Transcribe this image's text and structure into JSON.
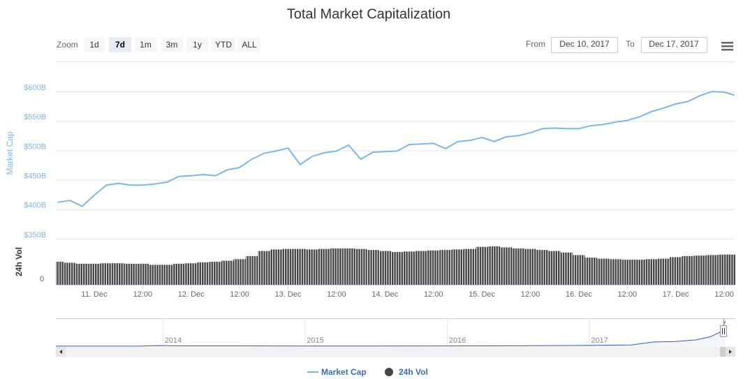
{
  "range_selector": {
    "label": "Zoom",
    "buttons": [
      "1d",
      "7d",
      "1m",
      "3m",
      "1y",
      "YTD",
      "ALL"
    ],
    "selected": "7d"
  },
  "date_range": {
    "from_label": "From",
    "from": "Dec 10, 2017",
    "to_label": "To",
    "to": "Dec 17, 2017"
  },
  "chart_data": [
    {
      "type": "line",
      "title": "Total Market Capitalization",
      "y_label": "Market Cap",
      "y2_label": "24h Vol",
      "x": [
        "2017-12-10T15:00",
        "2017-12-10T18:00",
        "2017-12-10T21:00",
        "2017-12-11T00:00",
        "2017-12-11T03:00",
        "2017-12-11T06:00",
        "2017-12-11T09:00",
        "2017-12-11T12:00",
        "2017-12-11T15:00",
        "2017-12-11T18:00",
        "2017-12-11T21:00",
        "2017-12-12T00:00",
        "2017-12-12T03:00",
        "2017-12-12T06:00",
        "2017-12-12T09:00",
        "2017-12-12T12:00",
        "2017-12-12T15:00",
        "2017-12-12T18:00",
        "2017-12-12T21:00",
        "2017-12-13T00:00",
        "2017-12-13T03:00",
        "2017-12-13T06:00",
        "2017-12-13T09:00",
        "2017-12-13T12:00",
        "2017-12-13T15:00",
        "2017-12-13T18:00",
        "2017-12-13T21:00",
        "2017-12-14T00:00",
        "2017-12-14T03:00",
        "2017-12-14T06:00",
        "2017-12-14T09:00",
        "2017-12-14T12:00",
        "2017-12-14T15:00",
        "2017-12-14T18:00",
        "2017-12-14T21:00",
        "2017-12-15T00:00",
        "2017-12-15T03:00",
        "2017-12-15T06:00",
        "2017-12-15T09:00",
        "2017-12-15T12:00",
        "2017-12-15T15:00",
        "2017-12-15T18:00",
        "2017-12-15T21:00",
        "2017-12-16T00:00",
        "2017-12-16T03:00",
        "2017-12-16T06:00",
        "2017-12-16T09:00",
        "2017-12-16T12:00",
        "2017-12-16T15:00",
        "2017-12-16T18:00",
        "2017-12-16T21:00",
        "2017-12-17T00:00",
        "2017-12-17T03:00",
        "2017-12-17T06:00",
        "2017-12-17T09:00",
        "2017-12-17T12:00",
        "2017-12-17T14:30"
      ],
      "series": [
        {
          "name": "Market Cap",
          "color": "#7cb5ec",
          "values": [
            412,
            415,
            405,
            424,
            441,
            444,
            441,
            441,
            443,
            446,
            456,
            457,
            459,
            457,
            467,
            471,
            485,
            495,
            499,
            504,
            476,
            490,
            496,
            499,
            509,
            485,
            497,
            498,
            499,
            510,
            511,
            512,
            503,
            515,
            517,
            522,
            515,
            523,
            525,
            530,
            537,
            538,
            537,
            537,
            542,
            544,
            548,
            551,
            557,
            566,
            572,
            579,
            583,
            593,
            600,
            599,
            594
          ]
        },
        {
          "name": "24h Vol",
          "type": "bar",
          "axis": "y2",
          "color": "#434348",
          "values": [
            22.5,
            21.5,
            20.5,
            20.5,
            21,
            21,
            20.5,
            20.5,
            19.5,
            19.5,
            20.5,
            21,
            22,
            22.5,
            23.5,
            25,
            28,
            33,
            34.5,
            35,
            35,
            34.5,
            35,
            35.5,
            35.5,
            35,
            34,
            33,
            32,
            32.5,
            33,
            33.5,
            34,
            34.5,
            35,
            37,
            37.5,
            36.5,
            35.5,
            35,
            34,
            33,
            31.5,
            29,
            26.5,
            25.5,
            25,
            24.5,
            24.5,
            25,
            25.5,
            27,
            28,
            28.5,
            29,
            29.5,
            29.5
          ]
        }
      ],
      "xlim": [
        "2017-12-10T14:30",
        "2017-12-17T14:45"
      ],
      "xticks": [
        {
          "value": "2017-12-11T00:00",
          "label": "11. Dec"
        },
        {
          "value": "2017-12-11T12:00",
          "label": "12:00"
        },
        {
          "value": "2017-12-12T00:00",
          "label": "12. Dec"
        },
        {
          "value": "2017-12-12T12:00",
          "label": "12:00"
        },
        {
          "value": "2017-12-13T00:00",
          "label": "13. Dec"
        },
        {
          "value": "2017-12-13T12:00",
          "label": "12:00"
        },
        {
          "value": "2017-12-14T00:00",
          "label": "14. Dec"
        },
        {
          "value": "2017-12-14T12:00",
          "label": "12:00"
        },
        {
          "value": "2017-12-15T00:00",
          "label": "15. Dec"
        },
        {
          "value": "2017-12-15T12:00",
          "label": "12:00"
        },
        {
          "value": "2017-12-16T00:00",
          "label": "16. Dec"
        },
        {
          "value": "2017-12-16T12:00",
          "label": "12:00"
        },
        {
          "value": "2017-12-17T00:00",
          "label": "17. Dec"
        },
        {
          "value": "2017-12-17T12:00",
          "label": "12:00"
        }
      ],
      "ylim": [
        350,
        650
      ],
      "yticks": [
        {
          "value": 350,
          "label": "$350B"
        },
        {
          "value": 400,
          "label": "$400B"
        },
        {
          "value": 450,
          "label": "$450B"
        },
        {
          "value": 500,
          "label": "$500B"
        },
        {
          "value": 550,
          "label": "$550B"
        },
        {
          "value": 600,
          "label": "$600B"
        }
      ],
      "y2lim": [
        0,
        45
      ],
      "y2ticks": [
        0
      ],
      "grid": true
    },
    {
      "type": "area",
      "color": "#335cad",
      "x": [
        2013.25,
        2013.85,
        2013.95,
        2014.2,
        2014.5,
        2015.0,
        2015.5,
        2016.0,
        2016.5,
        2017.0,
        2017.3,
        2017.45,
        2017.6,
        2017.75,
        2017.85,
        2017.92,
        2017.96
      ],
      "values": [
        1.5,
        3,
        14,
        8,
        8,
        5,
        4,
        7,
        10,
        18,
        30,
        100,
        110,
        150,
        220,
        330,
        600
      ],
      "xlim": [
        2013.25,
        2018.03
      ],
      "xticks": [
        2014,
        2015,
        2016,
        2017
      ],
      "ylim": [
        0,
        650
      ],
      "grid": true
    }
  ]
}
